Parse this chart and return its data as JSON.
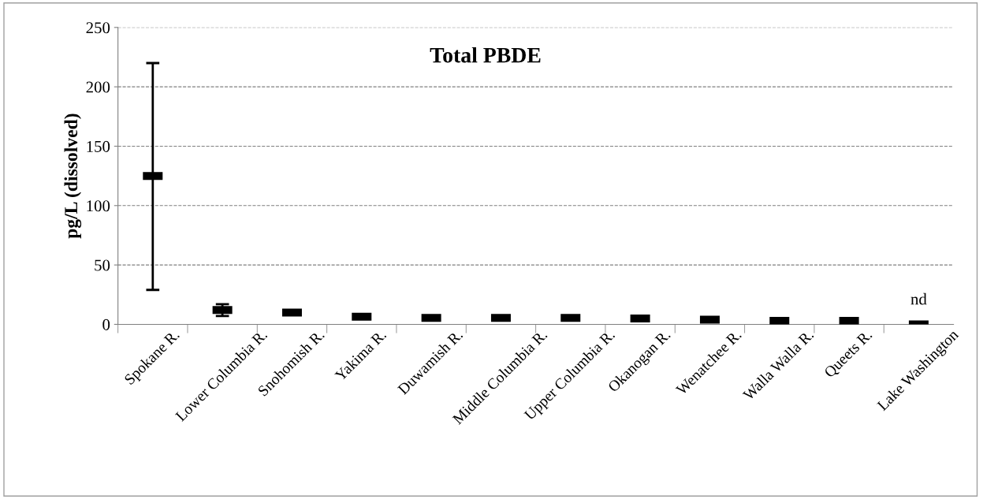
{
  "chart_data": {
    "type": "scatter",
    "title": "Total PBDE",
    "ylabel": "pg/L (dissolved)",
    "categories": [
      "Spokane R.",
      "Lower Columbia R.",
      "Snohomish R.",
      "Yakima R.",
      "Duwamish R.",
      "Middle Columbia R.",
      "Upper Columbia R.",
      "Okanogan R.",
      "Wenatchee R.",
      "Walla Walla R.",
      "Queets R.",
      "Lake Washington"
    ],
    "series": [
      {
        "color": "#000000",
        "values": [
          125,
          12,
          10,
          6.5,
          5.5,
          5.5,
          5.5,
          5,
          4,
          3,
          3,
          0
        ],
        "errors": [
          [
            29,
            220
          ],
          [
            7,
            17
          ],
          null,
          null,
          null,
          null,
          null,
          null,
          null,
          null,
          null,
          null
        ]
      }
    ],
    "annotations": [
      "nd"
    ],
    "ylim": [
      0,
      250
    ],
    "yticks": [
      0,
      50,
      100,
      150,
      200,
      250
    ],
    "grid": "y",
    "legend": false
  }
}
